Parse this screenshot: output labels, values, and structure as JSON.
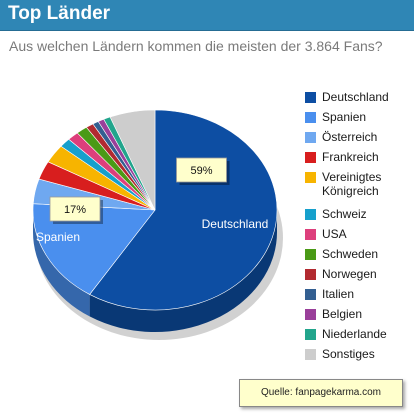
{
  "header": {
    "title": "Top Länder"
  },
  "subtitle": "Aus welchen Ländern kommen die meisten der 3.864 Fans?",
  "source": "Quelle: fanpagekarma.com",
  "chart_data": {
    "type": "pie",
    "title": "Top Länder",
    "subtitle": "Aus welchen Ländern kommen die meisten der 3.864 Fans?",
    "total_fans": 3864,
    "slices": [
      {
        "name": "Deutschland",
        "value": 59,
        "color": "#0d4ea3",
        "label": "59%"
      },
      {
        "name": "Spanien",
        "value": 17,
        "color": "#4a8fee",
        "label": "17%"
      },
      {
        "name": "Österreich",
        "value": 4,
        "color": "#6fa8f0"
      },
      {
        "name": "Frankreich",
        "value": 3,
        "color": "#d81e1e"
      },
      {
        "name": "Vereinigtes Königreich",
        "value": 3,
        "color": "#f7b400"
      },
      {
        "name": "Schweiz",
        "value": 1.5,
        "color": "#16a0cc"
      },
      {
        "name": "USA",
        "value": 1.5,
        "color": "#dd3f7c"
      },
      {
        "name": "Schweden",
        "value": 1.5,
        "color": "#4a9a16"
      },
      {
        "name": "Norwegen",
        "value": 1,
        "color": "#b22a30"
      },
      {
        "name": "Italien",
        "value": 0.8,
        "color": "#335f91"
      },
      {
        "name": "Belgien",
        "value": 0.8,
        "color": "#9a3f9a"
      },
      {
        "name": "Niederlande",
        "value": 0.9,
        "color": "#22a58c"
      },
      {
        "name": "Sonstiges",
        "value": 6,
        "color": "#cdcdcd"
      }
    ],
    "legend": [
      {
        "name": "Deutschland",
        "color": "#0d4ea3"
      },
      {
        "name": "Spanien",
        "color": "#4a8fee"
      },
      {
        "name": "Österreich",
        "color": "#6fa8f0"
      },
      {
        "name": "Frankreich",
        "color": "#d81e1e"
      },
      {
        "name": "Vereinigtes Königreich",
        "color": "#f7b400"
      },
      {
        "name": "Schweiz",
        "color": "#16a0cc"
      },
      {
        "name": "USA",
        "color": "#dd3f7c"
      },
      {
        "name": "Schweden",
        "color": "#4a9a16"
      },
      {
        "name": "Norwegen",
        "color": "#b22a30"
      },
      {
        "name": "Italien",
        "color": "#335f91"
      },
      {
        "name": "Belgien",
        "color": "#9a3f9a"
      },
      {
        "name": "Niederlande",
        "color": "#22a58c"
      },
      {
        "name": "Sonstiges",
        "color": "#cdcdcd"
      }
    ],
    "legend_position": "right"
  }
}
